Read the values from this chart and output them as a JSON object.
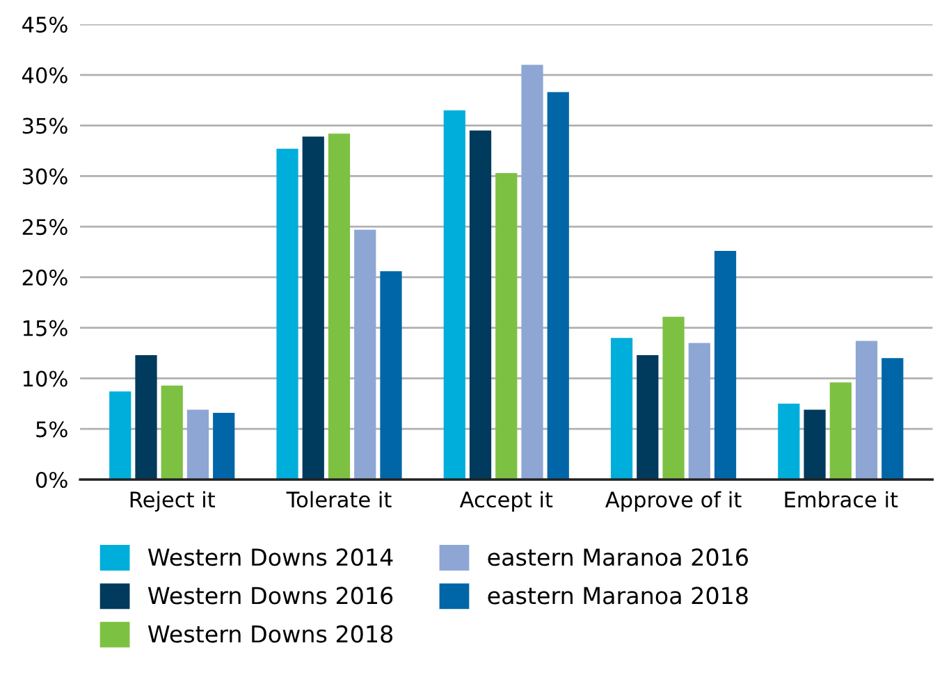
{
  "chart_data": {
    "type": "bar",
    "categories": [
      "Reject it",
      "Tolerate it",
      "Accept it",
      "Approve of it",
      "Embrace it"
    ],
    "series": [
      {
        "name": "Western Downs 2014",
        "color": "#00aedb",
        "values": [
          8.7,
          32.7,
          36.5,
          14.0,
          7.5
        ]
      },
      {
        "name": "Western Downs 2016",
        "color": "#003a5d",
        "values": [
          12.3,
          33.9,
          34.5,
          12.3,
          6.9
        ]
      },
      {
        "name": "Western Downs 2018",
        "color": "#7dc142",
        "values": [
          9.3,
          34.2,
          30.3,
          16.1,
          9.6
        ]
      },
      {
        "name": "eastern Maranoa 2016",
        "color": "#8ea6d4",
        "values": [
          6.9,
          24.7,
          41.0,
          13.5,
          13.7
        ]
      },
      {
        "name": "eastern Maranoa 2018",
        "color": "#0066a8",
        "values": [
          6.6,
          20.6,
          38.3,
          22.6,
          12.0
        ]
      }
    ],
    "ylim": [
      0,
      45
    ],
    "yticks": [
      {
        "value": 0,
        "label": "0%"
      },
      {
        "value": 5,
        "label": "5%"
      },
      {
        "value": 10,
        "label": "10%"
      },
      {
        "value": 15,
        "label": "15%"
      },
      {
        "value": 20,
        "label": "20%"
      },
      {
        "value": 25,
        "label": "25%"
      },
      {
        "value": 30,
        "label": "30%"
      },
      {
        "value": 35,
        "label": "35%"
      },
      {
        "value": 40,
        "label": "40%"
      },
      {
        "value": 45,
        "label": "45%"
      }
    ],
    "grid": "y",
    "legend": "bottom"
  }
}
